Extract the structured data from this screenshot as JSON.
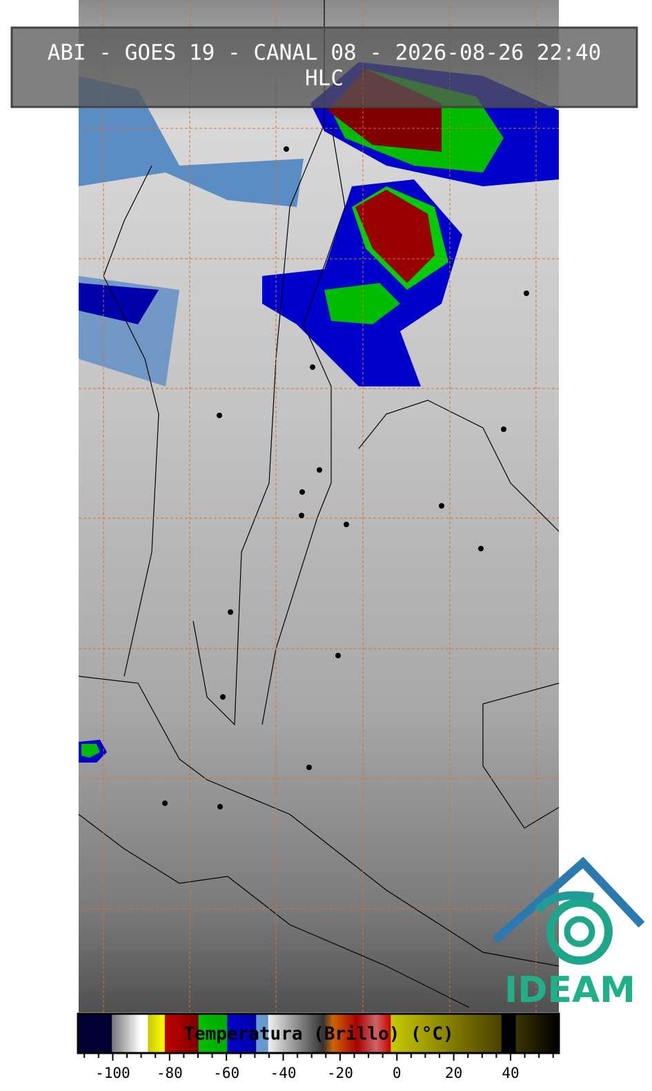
{
  "header": {
    "title": "ABI - GOES 19 - CANAL 08 - 2026-08-26 22:40",
    "subtitle": "HLC"
  },
  "colorbar": {
    "label": "Temperatura (Brillo) (°C)",
    "lim": [
      -112,
      57
    ],
    "ticks": [
      -100,
      -80,
      -60,
      -40,
      -20,
      0,
      20,
      40
    ],
    "minor_ticks": [
      -110,
      -105,
      -95,
      -90,
      -85,
      -75,
      -70,
      -65,
      -55,
      -50,
      -45,
      -35,
      -30,
      -25,
      -15,
      -10,
      -5,
      5,
      10,
      15,
      25,
      30,
      35,
      45,
      50,
      55
    ]
  },
  "logo": {
    "text": "IDEAM"
  }
}
